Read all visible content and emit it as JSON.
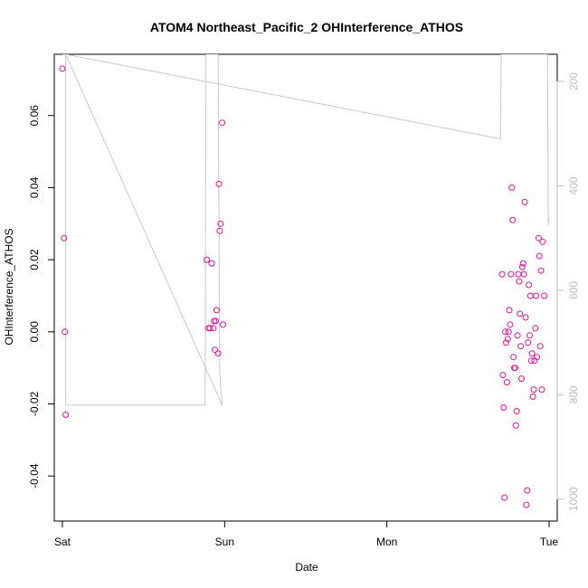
{
  "chart_data": {
    "type": "scatter",
    "title": "ATOM4 Northeast_Pacific_2 OHInterference_ATHOS",
    "xlabel": "Date",
    "ylabel": "OHInterference_ATHOS",
    "x_ticks": [
      {
        "label": "Sat",
        "value": 0
      },
      {
        "label": "Sun",
        "value": 1
      },
      {
        "label": "Mon",
        "value": 2
      },
      {
        "label": "Tue",
        "value": 3
      }
    ],
    "xlim": [
      -0.05,
      3.05
    ],
    "ylim": [
      -0.0525,
      0.077
    ],
    "y_ticks": [
      -0.04,
      -0.02,
      0.0,
      0.02,
      0.04,
      0.06
    ],
    "y_tick_labels": [
      "-0.04",
      "-0.02",
      "0.00",
      "0.02",
      "0.04",
      "0.06"
    ],
    "secondary_axis": {
      "color": "#bdbdbd",
      "reversed": true,
      "lim": [
        148,
        1042
      ],
      "ticks": [
        200,
        400,
        600,
        800,
        1000
      ],
      "tick_labels": [
        "200",
        "400",
        "600",
        "800",
        "1000"
      ]
    },
    "series": [
      {
        "color": "#e0119b",
        "marker": "open-circle",
        "points": [
          [
            0.0,
            0.073
          ],
          [
            0.01,
            0.026
          ],
          [
            0.015,
            0.0
          ],
          [
            0.02,
            -0.023
          ],
          [
            0.89,
            0.02
          ],
          [
            0.9,
            0.001
          ],
          [
            0.91,
            0.001
          ],
          [
            0.92,
            0.019
          ],
          [
            0.93,
            0.001
          ],
          [
            0.935,
            0.003
          ],
          [
            0.94,
            -0.005
          ],
          [
            0.945,
            0.003
          ],
          [
            0.95,
            0.006
          ],
          [
            0.96,
            -0.006
          ],
          [
            0.965,
            0.041
          ],
          [
            0.97,
            0.028
          ],
          [
            0.975,
            0.03
          ],
          [
            0.985,
            0.058
          ],
          [
            0.99,
            0.002
          ],
          [
            2.71,
            0.016
          ],
          [
            2.715,
            -0.012
          ],
          [
            2.72,
            -0.021
          ],
          [
            2.725,
            -0.046
          ],
          [
            2.73,
            0.0
          ],
          [
            2.735,
            -0.003
          ],
          [
            2.74,
            -0.014
          ],
          [
            2.745,
            -0.002
          ],
          [
            2.75,
            0.0
          ],
          [
            2.755,
            0.006
          ],
          [
            2.76,
            0.002
          ],
          [
            2.765,
            0.016
          ],
          [
            2.77,
            0.04
          ],
          [
            2.775,
            0.031
          ],
          [
            2.78,
            -0.007
          ],
          [
            2.785,
            -0.01
          ],
          [
            2.79,
            -0.01
          ],
          [
            2.795,
            -0.026
          ],
          [
            2.8,
            -0.022
          ],
          [
            2.805,
            -0.001
          ],
          [
            2.81,
            0.016
          ],
          [
            2.815,
            0.014
          ],
          [
            2.82,
            0.005
          ],
          [
            2.825,
            -0.004
          ],
          [
            2.83,
            -0.013
          ],
          [
            2.835,
            0.018
          ],
          [
            2.84,
            0.019
          ],
          [
            2.845,
            0.016
          ],
          [
            2.85,
            0.036
          ],
          [
            2.855,
            0.004
          ],
          [
            2.86,
            -0.048
          ],
          [
            2.865,
            -0.044
          ],
          [
            2.87,
            -0.003
          ],
          [
            2.875,
            0.013
          ],
          [
            2.88,
            -0.001
          ],
          [
            2.885,
            0.01
          ],
          [
            2.89,
            -0.008
          ],
          [
            2.895,
            -0.006
          ],
          [
            2.9,
            -0.018
          ],
          [
            2.905,
            -0.016
          ],
          [
            2.91,
            -0.008
          ],
          [
            2.915,
            0.001
          ],
          [
            2.92,
            0.01
          ],
          [
            2.925,
            -0.007
          ],
          [
            2.935,
            0.026
          ],
          [
            2.94,
            0.021
          ],
          [
            2.945,
            -0.004
          ],
          [
            2.95,
            0.017
          ],
          [
            2.955,
            -0.016
          ],
          [
            2.96,
            0.025
          ],
          [
            2.97,
            0.01
          ]
        ]
      },
      {
        "color": "#c8c8c8",
        "type": "line",
        "axis": "secondary",
        "points": [
          [
            0.0,
            148
          ],
          [
            0.02,
            148
          ],
          [
            0.02,
            820
          ],
          [
            0.88,
            820
          ],
          [
            0.885,
            148
          ],
          [
            0.895,
            148
          ],
          [
            0.9,
            148
          ],
          [
            0.905,
            148
          ],
          [
            0.92,
            148
          ],
          [
            0.925,
            148
          ],
          [
            0.935,
            148
          ],
          [
            0.94,
            148
          ],
          [
            0.955,
            148
          ],
          [
            0.96,
            148
          ],
          [
            0.97,
            760
          ],
          [
            0.985,
            820
          ],
          [
            0.02,
            148
          ],
          [
            2.7,
            310
          ],
          [
            2.705,
            148
          ],
          [
            2.78,
            148
          ],
          [
            2.785,
            148
          ],
          [
            2.79,
            148
          ],
          [
            2.8,
            148
          ],
          [
            2.815,
            148
          ],
          [
            2.825,
            148
          ],
          [
            2.84,
            148
          ],
          [
            2.855,
            148
          ],
          [
            2.87,
            148
          ],
          [
            2.88,
            148
          ],
          [
            2.9,
            148
          ],
          [
            2.92,
            148
          ],
          [
            2.935,
            148
          ],
          [
            2.95,
            148
          ],
          [
            2.96,
            148
          ],
          [
            2.97,
            148
          ],
          [
            2.98,
            148
          ],
          [
            2.99,
            148
          ],
          [
            2.995,
            475
          ],
          [
            3.0,
            460
          ]
        ]
      }
    ]
  }
}
